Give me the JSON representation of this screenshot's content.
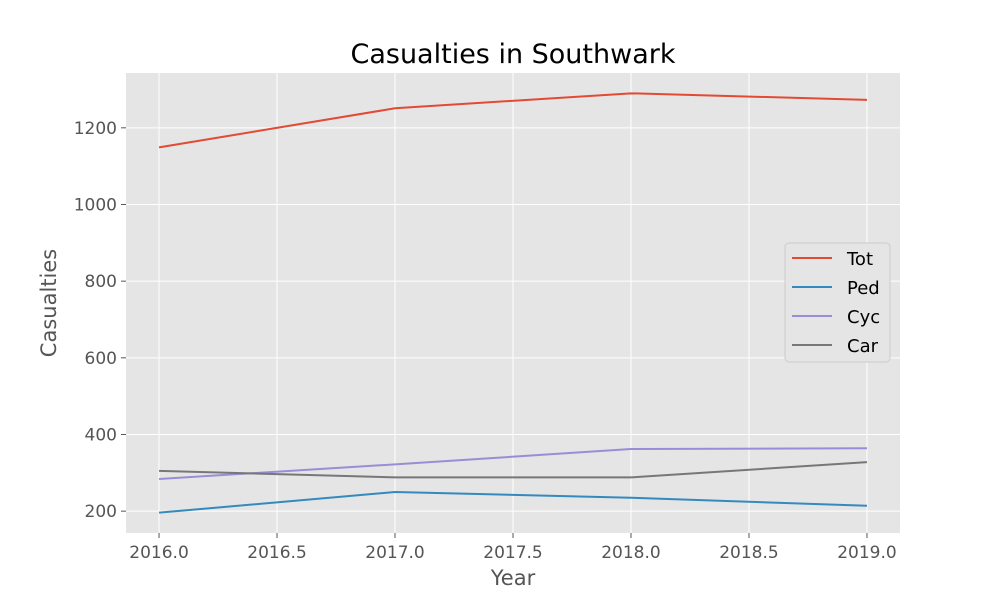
{
  "chart_data": {
    "type": "line",
    "title": "Casualties in Southwark",
    "xlabel": "Year",
    "ylabel": "Casualties",
    "x": [
      2016,
      2017,
      2018,
      2019
    ],
    "xlim": [
      2015.86,
      2019.14
    ],
    "ylim": [
      143,
      1343
    ],
    "xticks": [
      "2016.0",
      "2016.5",
      "2017.0",
      "2017.5",
      "2018.0",
      "2018.5",
      "2019.0"
    ],
    "yticks": [
      "200",
      "400",
      "600",
      "800",
      "1000",
      "1200"
    ],
    "grid": true,
    "legend_position": "right",
    "series": [
      {
        "name": "Tot",
        "color": "#E24A33",
        "values": [
          1149,
          1251,
          1290,
          1273
        ]
      },
      {
        "name": "Ped",
        "color": "#348ABD",
        "values": [
          196,
          250,
          235,
          214
        ]
      },
      {
        "name": "Cyc",
        "color": "#988ED5",
        "values": [
          284,
          322,
          362,
          364
        ]
      },
      {
        "name": "Car",
        "color": "#777777",
        "values": [
          305,
          288,
          288,
          328
        ]
      }
    ]
  }
}
